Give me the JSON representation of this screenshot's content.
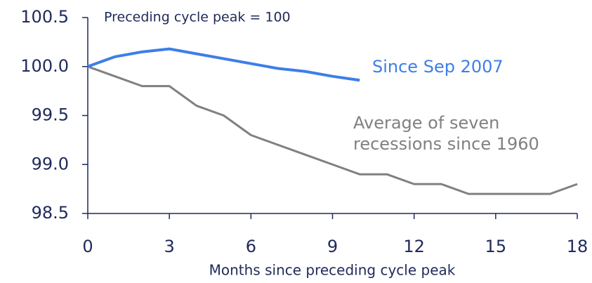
{
  "chart_data": {
    "type": "line",
    "title": "Preceding cycle peak = 100",
    "x_label": "Months since preceding cycle peak",
    "x": [
      0,
      1,
      2,
      3,
      4,
      5,
      6,
      7,
      8,
      9,
      10,
      11,
      12,
      13,
      14,
      15,
      16,
      17,
      18
    ],
    "series": [
      {
        "name": "Since Sep 2007",
        "color": "#3d7ee8",
        "values": [
          100.0,
          100.1,
          100.15,
          100.18,
          100.13,
          100.08,
          100.03,
          99.98,
          99.95,
          99.9,
          99.86,
          null,
          null,
          null,
          null,
          null,
          null,
          null,
          null
        ]
      },
      {
        "name": "Average of seven recessions since 1960",
        "color": "#808080",
        "values": [
          100.0,
          99.9,
          99.8,
          99.8,
          99.6,
          99.5,
          99.3,
          99.2,
          99.1,
          99.0,
          98.9,
          98.9,
          98.8,
          98.8,
          98.7,
          98.7,
          98.7,
          98.7,
          98.8
        ]
      }
    ],
    "xlim": [
      0,
      18
    ],
    "xticks": [
      0,
      3,
      6,
      9,
      12,
      15,
      18
    ],
    "ylim": [
      98.5,
      100.5
    ],
    "yticks": [
      98.5,
      {
        "value": 99,
        "label": "99.0"
      },
      99.5,
      {
        "value": 100,
        "label": "100.0"
      },
      100.5
    ],
    "grid": false
  }
}
